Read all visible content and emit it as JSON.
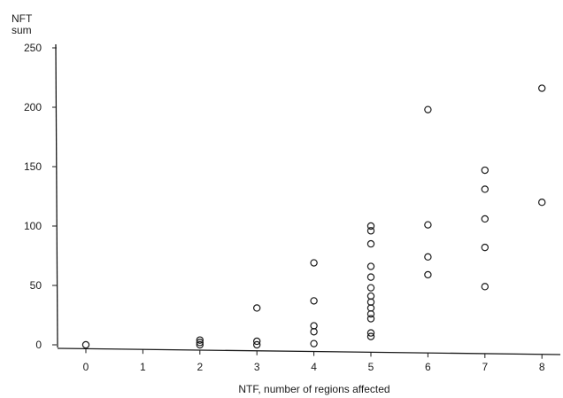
{
  "chart_data": {
    "type": "scatter",
    "title": "",
    "xlabel": "NTF, number of regions affected",
    "ylabel_line1": "NFT",
    "ylabel_line2": "sum",
    "xlim": [
      -0.4,
      8.4
    ],
    "ylim": [
      -3,
      252
    ],
    "x_ticks": [
      0,
      1,
      2,
      3,
      4,
      5,
      6,
      7,
      8
    ],
    "y_ticks": [
      0,
      50,
      100,
      150,
      200,
      250
    ],
    "grid": false,
    "legend": "none",
    "marker": "open-circle",
    "series": [
      {
        "points": [
          {
            "x": 0,
            "y": 0
          },
          {
            "x": 2,
            "y": 4
          },
          {
            "x": 2,
            "y": 2
          },
          {
            "x": 2,
            "y": 0
          },
          {
            "x": 3,
            "y": 31
          },
          {
            "x": 3,
            "y": 3
          },
          {
            "x": 3,
            "y": 0
          },
          {
            "x": 4,
            "y": 69
          },
          {
            "x": 4,
            "y": 37
          },
          {
            "x": 4,
            "y": 16
          },
          {
            "x": 4,
            "y": 11
          },
          {
            "x": 4,
            "y": 1
          },
          {
            "x": 5,
            "y": 100
          },
          {
            "x": 5,
            "y": 96
          },
          {
            "x": 5,
            "y": 85
          },
          {
            "x": 5,
            "y": 66
          },
          {
            "x": 5,
            "y": 57
          },
          {
            "x": 5,
            "y": 48
          },
          {
            "x": 5,
            "y": 41
          },
          {
            "x": 5,
            "y": 36
          },
          {
            "x": 5,
            "y": 31
          },
          {
            "x": 5,
            "y": 26
          },
          {
            "x": 5,
            "y": 22
          },
          {
            "x": 5,
            "y": 10
          },
          {
            "x": 5,
            "y": 7
          },
          {
            "x": 6,
            "y": 198
          },
          {
            "x": 6,
            "y": 101
          },
          {
            "x": 6,
            "y": 74
          },
          {
            "x": 6,
            "y": 59
          },
          {
            "x": 7,
            "y": 147
          },
          {
            "x": 7,
            "y": 131
          },
          {
            "x": 7,
            "y": 106
          },
          {
            "x": 7,
            "y": 82
          },
          {
            "x": 7,
            "y": 49
          },
          {
            "x": 8,
            "y": 216
          },
          {
            "x": 8,
            "y": 120
          }
        ]
      }
    ]
  }
}
